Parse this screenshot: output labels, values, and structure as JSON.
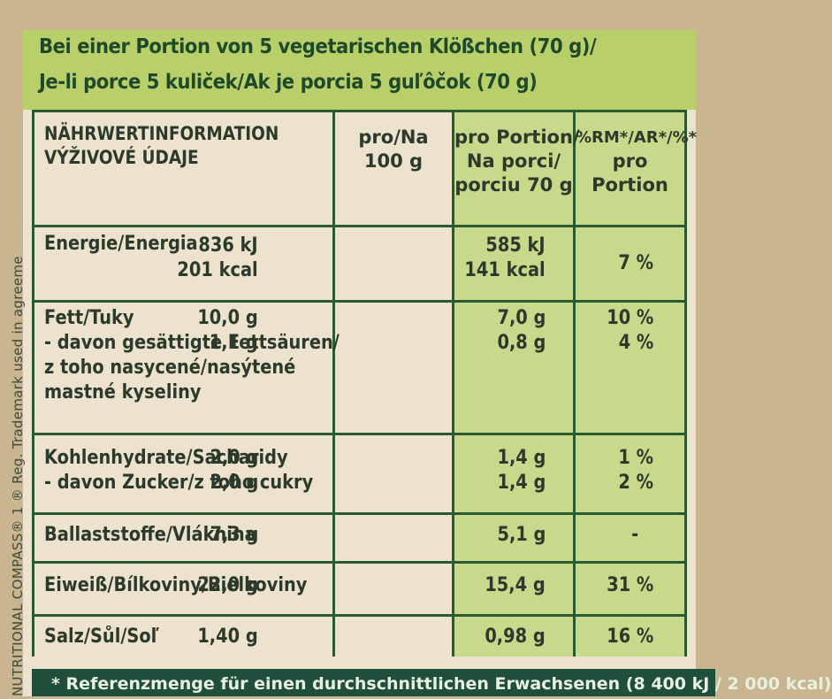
{
  "header": {
    "line1": "Bei einer Portion von 5 vegetarischen Klößchen (70 g)/",
    "line2": "Je-li porce 5 kuliček/Ak je porcia 5 guľôčok (70 g)"
  },
  "side_text": "NUTRITIONAL COMPASS® 1 ® Reg. Trademark used in agreeme",
  "table": {
    "headers": {
      "col1": [
        "NÄHRWERTINFORMATION",
        "VÝŽIVOVÉ ÚDAJE"
      ],
      "col2": [
        "pro/Na",
        "100 g"
      ],
      "col3": [
        "pro Portion/",
        "Na porci/",
        "porciu 70 g"
      ],
      "col4": [
        "%RM*/AR*/%*",
        "pro",
        "Portion"
      ]
    },
    "rows": [
      {
        "label": [
          "Energie/Energia"
        ],
        "per100": [
          "836 kJ",
          "201 kcal"
        ],
        "portion": [
          "585 kJ",
          "141 kcal"
        ],
        "ri": [
          "7 %"
        ]
      },
      {
        "label": [
          "Fett/Tuky",
          "- davon gesättigte Fettsäuren/",
          "z toho nasycené/nasýtené",
          "mastné kyseliny"
        ],
        "per100": [
          "10,0 g",
          "1,1 g"
        ],
        "portion": [
          "7,0 g",
          "0,8 g"
        ],
        "ri": [
          "10 %",
          "4 %"
        ]
      },
      {
        "label": [
          "Kohlenhydrate/Sacharidy",
          "- davon Zucker/z toho cukry"
        ],
        "per100": [
          "2,0 g",
          "2,0 g"
        ],
        "portion": [
          "1,4 g",
          "1,4 g"
        ],
        "ri": [
          "1 %",
          "2 %"
        ]
      },
      {
        "label": [
          "Ballaststoffe/Vláknina"
        ],
        "per100": [
          "7,3 g"
        ],
        "portion": [
          "5,1 g"
        ],
        "ri": [
          "-"
        ]
      },
      {
        "label": [
          "Eiweiß/Bílkoviny/Bielkoviny"
        ],
        "per100": [
          "22,0 g"
        ],
        "portion": [
          "15,4 g"
        ],
        "ri": [
          "31 %"
        ]
      },
      {
        "label": [
          "Salz/Sůl/Soľ"
        ],
        "per100": [
          "1,40 g"
        ],
        "portion": [
          "0,98 g"
        ],
        "ri": [
          "16 %"
        ]
      }
    ]
  },
  "footer": "* Referenzmenge für einen durchschnittlichen Erwachsenen (8 400 kJ / 2 000 kcal)",
  "colors": {
    "header_green": "#b9cf6a",
    "column_green": "#c8d98c",
    "line_dark_green": "#2a5a2f",
    "footer_green": "#1f4e3c",
    "panel_cream": "#ece2cd"
  }
}
